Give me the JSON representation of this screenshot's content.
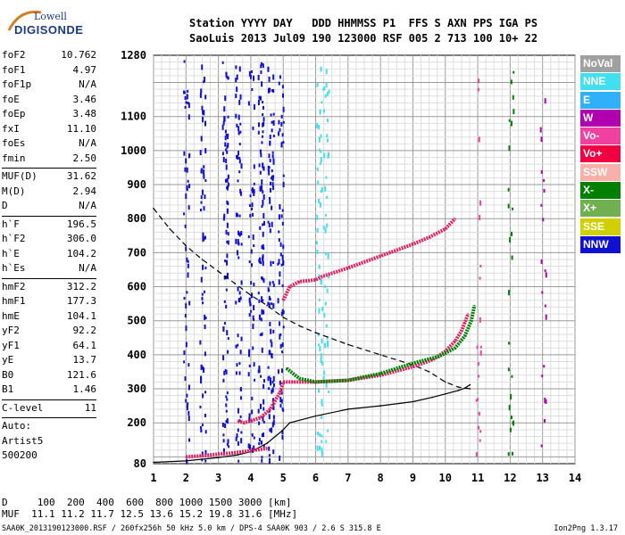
{
  "logo": {
    "line1": "Lowell",
    "line2": "DIGISONDE"
  },
  "header": {
    "row1": "Station YYYY DAY   DDD HHMMSS P1  FFS S AXN PPS IGA PS",
    "row2": "SaoLuis 2013 Jul09 190 123000 RSF 005 2 713 100 10+ 22"
  },
  "params": [
    {
      "label": "foF2",
      "value": "10.762"
    },
    {
      "label": "foF1",
      "value": "4.97"
    },
    {
      "label": "foF1p",
      "value": "N/A"
    },
    {
      "label": "foE",
      "value": "3.46"
    },
    {
      "label": "foEp",
      "value": "3.48"
    },
    {
      "label": "fxI",
      "value": "11.10"
    },
    {
      "label": "foEs",
      "value": "N/A"
    },
    {
      "label": "fmin",
      "value": "2.50"
    },
    {
      "sep": true
    },
    {
      "label": "MUF(D)",
      "value": "31.62"
    },
    {
      "label": "M(D)",
      "value": "2.94"
    },
    {
      "label": "D",
      "value": "N/A"
    },
    {
      "sep": true
    },
    {
      "label": "h`F",
      "value": "196.5"
    },
    {
      "label": "h`F2",
      "value": "306.0"
    },
    {
      "label": "h`E",
      "value": "104.2"
    },
    {
      "label": "h`Es",
      "value": "N/A"
    },
    {
      "sep": true
    },
    {
      "label": "hmF2",
      "value": "312.2"
    },
    {
      "label": "hmF1",
      "value": "177.3"
    },
    {
      "label": "hmE",
      "value": "104.1"
    },
    {
      "label": "yF2",
      "value": "92.2"
    },
    {
      "label": "yF1",
      "value": "64.1"
    },
    {
      "label": "yE",
      "value": "13.7"
    },
    {
      "label": "B0",
      "value": "121.6"
    },
    {
      "label": "B1",
      "value": "1.46"
    },
    {
      "sep": true
    },
    {
      "label": "C-level",
      "value": "11"
    },
    {
      "sep": true
    },
    {
      "label": "Auto:",
      "value": ""
    },
    {
      "label": "Artist5",
      "value": ""
    },
    {
      "label": "500200",
      "value": ""
    }
  ],
  "legend": [
    {
      "label": "NoVal",
      "color": "#a0a0a0"
    },
    {
      "label": "NNE",
      "color": "#40e0f0"
    },
    {
      "label": "E",
      "color": "#30b0f8"
    },
    {
      "label": "W",
      "color": "#b000b0"
    },
    {
      "label": "Vo-",
      "color": "#f040a0"
    },
    {
      "label": "Vo+",
      "color": "#f00040"
    },
    {
      "label": "SSW",
      "color": "#f8b0a8"
    },
    {
      "label": "X-",
      "color": "#008000"
    },
    {
      "label": "X+",
      "color": "#70b050"
    },
    {
      "label": "SSE",
      "color": "#d0d000"
    },
    {
      "label": "NNW",
      "color": "#1010d0"
    }
  ],
  "footer": {
    "row1": "D     100  200  400  600  800 1000 1500 3000 [km]",
    "row2": "MUF  11.1 11.2 11.7 12.5 13.6 15.2 19.8 31.6 [MHz]",
    "footnote": "SAA0K_2013190123000.RSF / 260fx256h 50 kHz 5.0 km / DPS-4 SAA0K 903 / 2.6 S 315.8 E",
    "version": "Ion2Png 1.3.17"
  },
  "chart_data": {
    "type": "scatter",
    "title": "",
    "xlabel": "",
    "ylabel": "",
    "xlim": [
      1,
      14
    ],
    "ylim": [
      80,
      1280
    ],
    "xticks": [
      1,
      2,
      3,
      4,
      5,
      6,
      7,
      8,
      9,
      10,
      11,
      12,
      13,
      14
    ],
    "yticks": [
      80,
      200,
      300,
      400,
      500,
      600,
      700,
      800,
      900,
      1000,
      1100,
      1280
    ],
    "grid": true,
    "series": [
      {
        "color": "#000000",
        "style": "solid",
        "x": [
          1.0,
          2.0,
          3.0,
          3.6,
          4.0,
          4.5,
          4.97,
          5.2,
          6.0,
          7.0,
          8.0,
          9.0,
          9.6,
          10.0,
          10.4,
          10.6,
          10.76
        ],
        "y": [
          84,
          88,
          98,
          106,
          115,
          140,
          177,
          200,
          220,
          240,
          250,
          262,
          275,
          285,
          295,
          302,
          312
        ]
      },
      {
        "color": "#000000",
        "style": "dashed",
        "x": [
          1.0,
          1.5,
          2.0,
          2.5,
          3.0,
          3.5,
          4.0,
          4.5,
          5.0,
          5.5,
          6.0,
          7.0,
          8.0,
          9.0,
          9.5,
          10.0,
          10.4,
          10.76
        ],
        "y": [
          830,
          770,
          720,
          680,
          645,
          610,
          575,
          545,
          510,
          485,
          465,
          430,
          400,
          370,
          350,
          320,
          305,
          300
        ]
      },
      {
        "color": "#e02060",
        "style": "trace",
        "x": [
          3.6,
          3.8,
          4.0,
          4.3,
          4.6,
          4.9,
          5.0,
          5.3,
          6.0,
          7.0,
          8.0,
          9.0,
          9.6,
          10.0,
          10.3,
          10.5,
          10.6,
          10.7
        ],
        "y": [
          205,
          200,
          206,
          215,
          240,
          290,
          320,
          320,
          320,
          325,
          340,
          365,
          385,
          410,
          440,
          470,
          495,
          520
        ]
      },
      {
        "color": "#008000",
        "style": "trace",
        "x": [
          5.1,
          5.5,
          6.0,
          7.0,
          8.0,
          9.0,
          9.8,
          10.3,
          10.6,
          10.8,
          10.9
        ],
        "y": [
          360,
          330,
          320,
          325,
          345,
          375,
          395,
          420,
          455,
          500,
          545
        ]
      },
      {
        "color": "#e02060",
        "style": "trace",
        "x": [
          5.0,
          5.2,
          5.5,
          6.0,
          6.2,
          7.0,
          8.0,
          9.0,
          9.5,
          10.0,
          10.3
        ],
        "y": [
          560,
          600,
          615,
          620,
          630,
          655,
          690,
          725,
          745,
          770,
          800
        ]
      },
      {
        "color": "#e02060",
        "style": "trace",
        "x": [
          2.0,
          2.5,
          3.0,
          3.5,
          4.0,
          4.5
        ],
        "y": [
          100,
          103,
          108,
          112,
          118,
          125
        ]
      }
    ]
  }
}
